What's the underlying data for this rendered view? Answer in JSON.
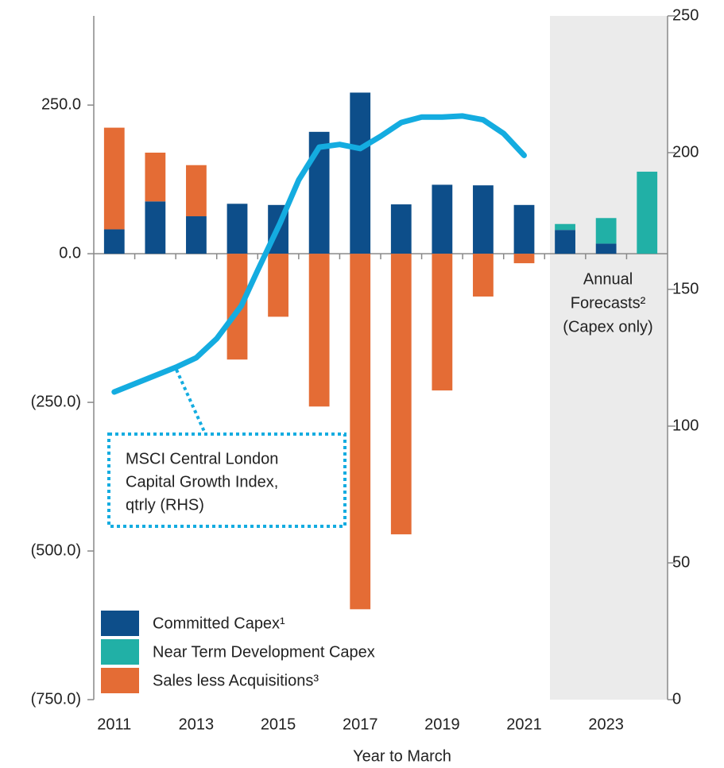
{
  "chart_data": {
    "type": "bar",
    "x_label": "Year to March",
    "categories": [
      "2011",
      null,
      "2013",
      null,
      "2015",
      null,
      "2017",
      null,
      "2019",
      null,
      "2021",
      null,
      "2023",
      null
    ],
    "series": [
      {
        "name": "Committed Capex¹",
        "color": "#0d4e8a",
        "values": [
          41,
          88,
          63,
          84,
          82,
          205,
          271,
          83,
          116,
          115,
          82,
          40,
          17,
          0
        ]
      },
      {
        "name": "Near Term Development Capex",
        "color": "#21b0a6",
        "values": [
          null,
          null,
          null,
          null,
          null,
          null,
          null,
          null,
          null,
          null,
          null,
          10,
          43,
          138
        ]
      },
      {
        "name": "Sales less Acquisitions³",
        "color": "#e46c35",
        "values": [
          171,
          82,
          86,
          -178,
          -106,
          -257,
          -598,
          -472,
          -230,
          -72,
          -16,
          null,
          null,
          null
        ]
      },
      {
        "name": "MSCI Central London Capital Growth Index, qtrly (RHS)",
        "type": "line",
        "axis": "y2",
        "color": "#14ace0",
        "x": [
          2011,
          2012.5,
          2013,
          2013.5,
          2014.1,
          2014.5,
          2015.05,
          2015.5,
          2016,
          2016.5,
          2017,
          2017.5,
          2018,
          2018.5,
          2019,
          2019.5,
          2020,
          2020.5,
          2021
        ],
        "values": [
          112.5,
          121.5,
          125,
          132,
          144,
          157,
          174.4,
          190,
          202,
          203,
          201.5,
          206,
          211,
          213,
          213,
          213.4,
          212,
          207,
          199
        ]
      }
    ],
    "callout": [
      "MSCI Central London",
      "Capital Growth Index,",
      "qtrly (RHS)"
    ],
    "annotation": [
      "Annual",
      "Forecasts²",
      "(Capex only)"
    ],
    "ylim": [
      -750,
      400
    ],
    "yticks": [
      {
        "value": -750,
        "label": "(750.0)"
      },
      {
        "value": -500,
        "label": "(500.0)"
      },
      {
        "value": -250,
        "label": "(250.0)"
      },
      {
        "value": 0,
        "label": "0.0"
      },
      {
        "value": 250,
        "label": "250.0"
      }
    ],
    "y2lim": [
      0,
      250
    ],
    "y2ticks": [
      0,
      50,
      100,
      150,
      200,
      250
    ],
    "legend": "lower left"
  }
}
